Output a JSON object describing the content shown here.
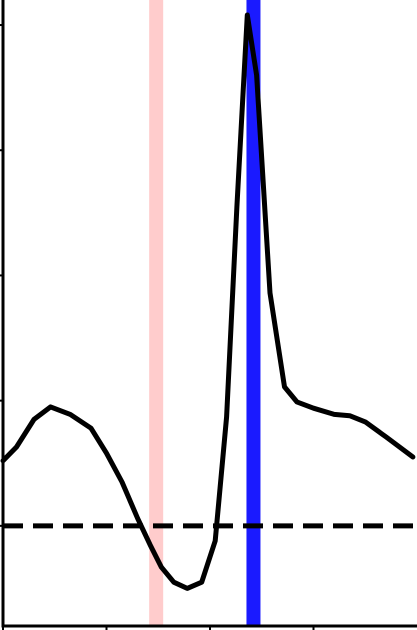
{
  "chart_data": {
    "type": "line",
    "title": "",
    "xlabel": "",
    "ylabel": "",
    "xlim": [
      0,
      40
    ],
    "ylim": [
      -0.8,
      4.2
    ],
    "xticks": [
      0,
      10,
      20,
      30
    ],
    "yticks": [
      0,
      1,
      2,
      3,
      4
    ],
    "grid": false,
    "legend": "none",
    "series": [
      {
        "color": "#000000",
        "x": [
          0,
          1.3,
          3,
          4.6,
          6.5,
          8.5,
          10,
          11.5,
          13,
          14.2,
          15.3,
          16.5,
          17.8,
          19.2,
          20.5,
          21.6,
          22.6,
          23.6,
          24.5,
          25.8,
          27.2,
          28.4,
          30,
          32,
          33.5,
          35,
          37,
          39.6
        ],
        "y": [
          0.52,
          0.63,
          0.85,
          0.95,
          0.89,
          0.78,
          0.58,
          0.35,
          0.06,
          -0.15,
          -0.33,
          -0.45,
          -0.5,
          -0.45,
          -0.12,
          0.87,
          2.55,
          4.08,
          3.6,
          1.86,
          1.11,
          0.99,
          0.94,
          0.89,
          0.88,
          0.83,
          0.71,
          0.55
        ]
      }
    ],
    "hlines": [
      {
        "y": 0,
        "color": "#000000",
        "style": "dashed"
      }
    ],
    "vlines": [
      {
        "x": 14.8,
        "color": "#ffcccc"
      },
      {
        "x": 24.2,
        "color": "#1a1aff"
      }
    ]
  }
}
